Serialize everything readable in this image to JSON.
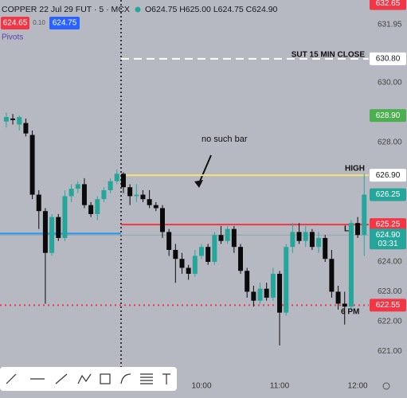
{
  "chart_data": {
    "type": "candlestick",
    "title": "COPPER 22 Jul 29 FUT · 5 · MCX",
    "subtitle": "O624.75 H625.00 L624.75 C624.90",
    "buttons": [
      "624.65",
      "0.10",
      "624.75"
    ],
    "indicator": "Pivots",
    "up_color": "#26a69a",
    "down_color": "#0b0b0b",
    "categories": [
      null,
      null,
      null,
      null,
      null,
      null,
      null,
      null,
      null,
      null,
      null,
      null,
      null,
      null,
      null,
      null,
      null,
      null,
      null,
      null,
      null,
      null,
      null,
      null,
      null,
      null,
      null,
      null,
      null,
      null,
      "10:00",
      null,
      null,
      null,
      null,
      null,
      null,
      null,
      null,
      null,
      null,
      null,
      "11:00",
      null,
      null,
      null,
      null,
      null,
      null,
      null,
      null,
      null,
      null,
      null,
      "12:00",
      null
    ],
    "open": [
      628.7,
      628.8,
      628.6,
      628.65,
      628.25,
      626.25,
      625.7,
      624.3,
      625.5,
      624.8,
      626.2,
      626.45,
      626.6,
      625.9,
      625.6,
      626.1,
      626.4,
      626.7,
      626.95,
      626.5,
      626.2,
      626.25,
      626.1,
      625.9,
      625.8,
      625.0,
      624.4,
      624.1,
      623.8,
      623.6,
      624.2,
      624.5,
      624.0,
      624.9,
      624.7,
      625.1,
      624.5,
      623.7,
      623.0,
      622.7,
      623.1,
      622.8,
      623.6,
      622.3,
      624.5,
      625.0,
      624.7,
      625.0,
      624.5,
      624.8,
      624.1,
      623.0,
      622.6,
      622.5,
      625.3,
      624.9
    ],
    "high": [
      629.0,
      628.95,
      628.9,
      628.8,
      628.4,
      626.4,
      625.8,
      625.6,
      625.6,
      626.4,
      626.6,
      626.7,
      626.8,
      626.0,
      626.2,
      626.5,
      626.8,
      627.1,
      627.0,
      626.6,
      626.6,
      626.4,
      626.4,
      626.0,
      625.9,
      625.1,
      624.6,
      624.3,
      623.9,
      624.4,
      624.6,
      624.6,
      625.0,
      625.2,
      625.2,
      625.2,
      624.6,
      623.8,
      623.2,
      623.3,
      623.3,
      623.8,
      623.7,
      624.6,
      625.3,
      625.3,
      625.2,
      625.1,
      625.0,
      624.9,
      624.4,
      623.2,
      623.0,
      625.4,
      625.5,
      626.95
    ],
    "low": [
      628.5,
      628.6,
      628.4,
      628.2,
      626.1,
      625.1,
      622.6,
      624.2,
      624.7,
      624.7,
      626.0,
      626.3,
      625.8,
      625.5,
      625.4,
      626.0,
      626.3,
      626.6,
      626.3,
      625.9,
      626.0,
      626.0,
      625.8,
      625.7,
      624.8,
      624.2,
      623.3,
      623.6,
      623.4,
      623.5,
      624.1,
      623.9,
      623.9,
      624.6,
      624.6,
      624.3,
      623.6,
      622.8,
      622.5,
      622.6,
      622.7,
      622.7,
      621.2,
      622.2,
      624.3,
      624.6,
      624.5,
      624.4,
      624.3,
      624.0,
      622.8,
      622.4,
      621.9,
      622.4,
      624.8,
      624.2
    ],
    "close": [
      628.85,
      628.75,
      628.85,
      628.3,
      626.25,
      625.7,
      624.3,
      625.5,
      624.8,
      626.2,
      626.45,
      626.6,
      625.9,
      625.6,
      626.1,
      626.4,
      626.7,
      626.95,
      626.5,
      626.2,
      626.25,
      626.1,
      625.9,
      625.8,
      625.0,
      624.4,
      624.1,
      623.8,
      623.6,
      624.2,
      624.5,
      624.0,
      624.9,
      624.7,
      625.1,
      624.5,
      623.7,
      623.0,
      622.7,
      623.1,
      622.8,
      623.6,
      622.3,
      624.5,
      625.0,
      624.7,
      625.0,
      624.5,
      624.8,
      624.1,
      623.0,
      622.6,
      622.5,
      625.3,
      624.9,
      626.25
    ],
    "ylim": [
      620.24,
      632.77
    ],
    "yticks": [
      631.95,
      {
        "value": 630,
        "label": "630.00"
      },
      {
        "value": 628,
        "label": "628.00"
      },
      {
        "value": 624,
        "label": "624.00"
      },
      {
        "value": 623,
        "label": "623.00"
      },
      {
        "value": 622,
        "label": "622.00"
      },
      {
        "value": 621,
        "label": "621.00"
      }
    ],
    "price_markers": [
      {
        "value": 632.65,
        "label": "632.65",
        "color": "#f23645"
      },
      {
        "value": 630.8,
        "label": "630.80",
        "color": "#ffffff"
      },
      {
        "value": 628.9,
        "label": "628.90",
        "color": "#4caf50"
      },
      {
        "value": 626.9,
        "label": "626.90",
        "color": "#ffffff"
      },
      {
        "value": 626.25,
        "label": "626.25",
        "color": "#26a69a"
      },
      {
        "value": 625.25,
        "label": "625.25",
        "color": "#f23645"
      },
      {
        "value": 624.9,
        "label": "624.90",
        "sublabel": "03:31",
        "color": "#26a69a"
      },
      {
        "value": 622.55,
        "label": "622.55",
        "color": "#f23645"
      }
    ],
    "levels": [
      {
        "value": 630.8,
        "color": "#ffffff",
        "style": "dashed"
      },
      {
        "value": 626.9,
        "color": "#f5e27a",
        "style": "solid"
      },
      {
        "value": 625.25,
        "color": "#f23645",
        "style": "solid"
      },
      {
        "value": 624.95,
        "color": "#2196f3",
        "style": "solid"
      },
      {
        "value": 622.55,
        "color": "#f23645",
        "style": "dotted"
      },
      {
        "value": 624.9,
        "color": "#8fa3a6",
        "style": "solid"
      }
    ],
    "annotations": [
      "SUT 15 MIN CLOSE",
      "no such bar",
      "HIGH",
      "L",
      "6 PM"
    ]
  }
}
